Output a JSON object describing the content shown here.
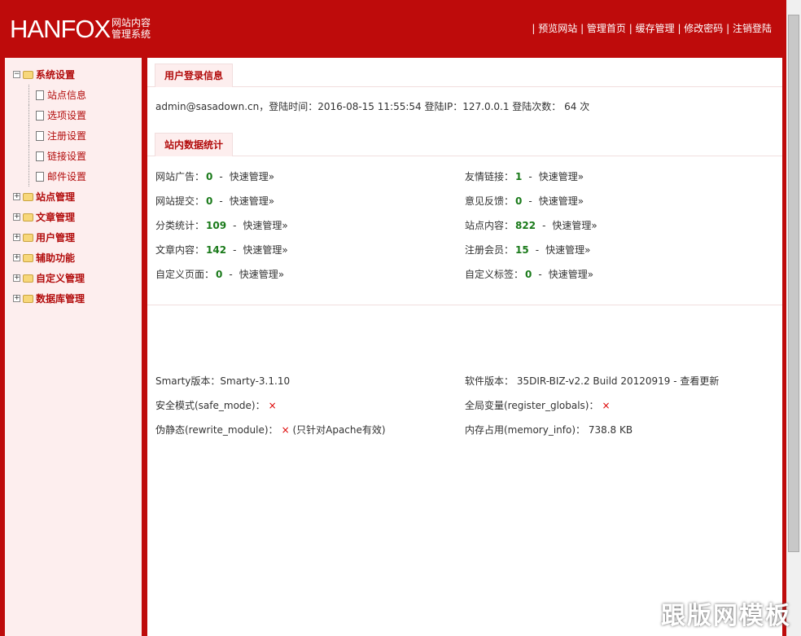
{
  "header": {
    "logo": "HANFOX",
    "logo_sub_1": "网站内容",
    "logo_sub_2": "管理系统",
    "nav": [
      "预览网站",
      "管理首页",
      "缓存管理",
      "修改密码",
      "注销登陆"
    ]
  },
  "sidebar": {
    "groups": [
      {
        "label": "系统设置",
        "expanded": true,
        "children": [
          "站点信息",
          "选项设置",
          "注册设置",
          "链接设置",
          "邮件设置"
        ]
      },
      {
        "label": "站点管理"
      },
      {
        "label": "文章管理"
      },
      {
        "label": "用户管理"
      },
      {
        "label": "辅助功能"
      },
      {
        "label": "自定义管理"
      },
      {
        "label": "数据库管理"
      }
    ]
  },
  "login": {
    "tab": "用户登录信息",
    "text": "admin@sasadown.cn，登陆时间：2016-08-15 11:55:54   登陆IP：127.0.0.1   登陆次数： 64 次"
  },
  "stats": {
    "tab": "站内数据统计",
    "link": "快速管理»",
    "items": [
      {
        "label": "网站广告：",
        "value": "0"
      },
      {
        "label": "友情链接：",
        "value": "1"
      },
      {
        "label": "网站提交：",
        "value": "0"
      },
      {
        "label": "意见反馈：",
        "value": "0"
      },
      {
        "label": "分类统计：",
        "value": "109"
      },
      {
        "label": "站点内容：",
        "value": "822"
      },
      {
        "label": "文章内容：",
        "value": "142"
      },
      {
        "label": "注册会员：",
        "value": "15"
      },
      {
        "label": "自定义页面：",
        "value": "0"
      },
      {
        "label": "自定义标签：",
        "value": "0"
      }
    ]
  },
  "sysinfo": {
    "smarty": "Smarty版本：Smarty-3.1.10",
    "software": "软件版本： 35DIR-BIZ-v2.2 Build 20120919 - ",
    "check_update": "查看更新",
    "safe_mode": "安全模式(safe_mode)：",
    "safe_mode_val": "×",
    "register_globals": "全局变量(register_globals)：",
    "register_globals_val": "×",
    "rewrite": "伪静态(rewrite_module)：",
    "rewrite_val": "×",
    "rewrite_note": " (只针对Apache有效)",
    "memory": "内存占用(memory_info)： 738.8 KB"
  },
  "watermark": "跟版网模板",
  "colors": {
    "brand": "#be0b0b",
    "sidebar_bg": "#fdeeee",
    "value_green": "#1a7a1a"
  }
}
